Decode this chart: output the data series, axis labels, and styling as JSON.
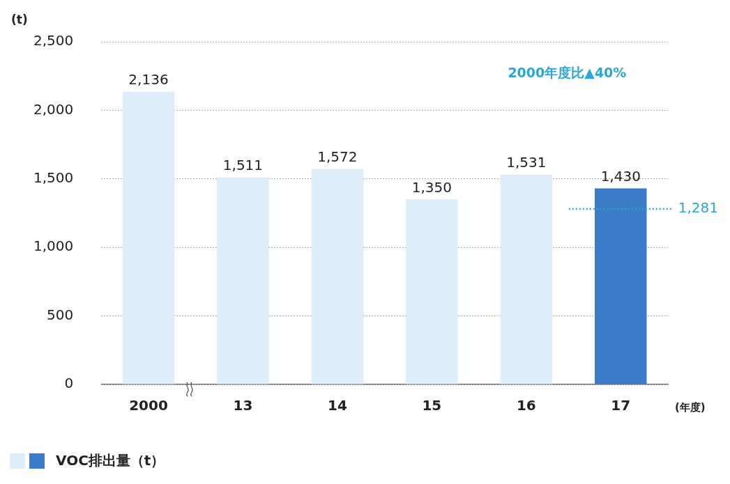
{
  "chart_data": {
    "type": "bar",
    "ylabel": "(t)",
    "xlabel": "(年度)",
    "categories": [
      "2000",
      "13",
      "14",
      "15",
      "16",
      "17"
    ],
    "series": [
      {
        "name": "VOC排出量（t）",
        "values": [
          2136,
          1511,
          1572,
          1350,
          1531,
          1430
        ],
        "value_labels": [
          "2,136",
          "1,511",
          "1,572",
          "1,350",
          "1,531",
          "1,430"
        ],
        "colors": [
          "#ddeefa",
          "#ddeefa",
          "#ddeefa",
          "#ddeefa",
          "#ddeefa",
          "#3a7cc7"
        ]
      }
    ],
    "ylim": [
      0,
      2500
    ],
    "yticks": [
      0,
      500,
      {
        "value": 1000,
        "label": "1,000"
      },
      {
        "value": 1500,
        "label": "1,500"
      },
      {
        "value": 2000,
        "label": "2,000"
      },
      {
        "value": 2500,
        "label": "2,500"
      }
    ],
    "grid": "y",
    "legend": "bottom left",
    "ref_lines": [
      {
        "axis": "y",
        "value": 1281,
        "label": "1,281",
        "color": "#2aa6d8",
        "line_style": "dotted"
      }
    ],
    "annotations": [
      "2000年度比▲40%"
    ]
  }
}
